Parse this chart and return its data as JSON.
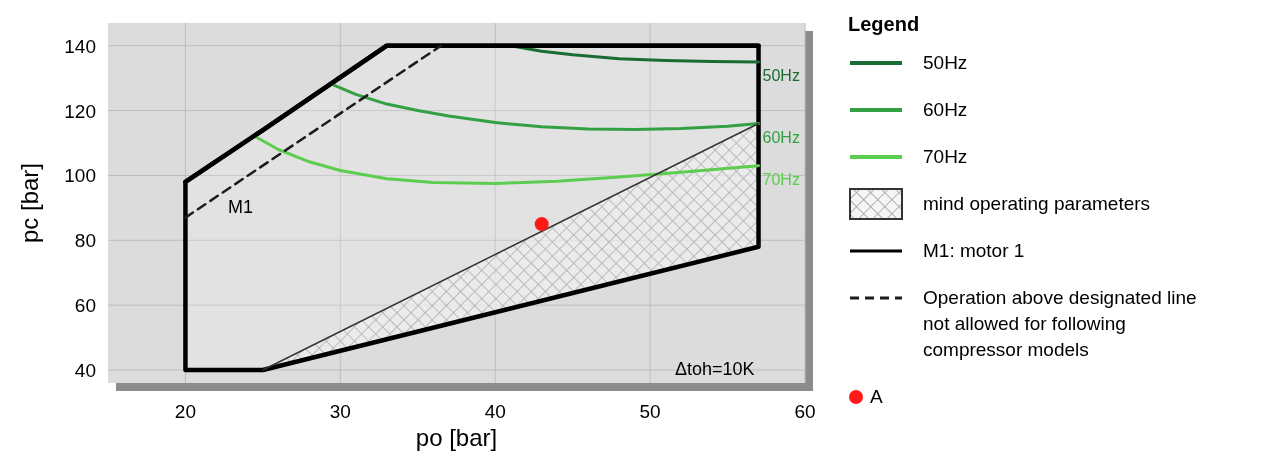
{
  "chart_data": {
    "type": "line",
    "xlabel": "po [bar]",
    "ylabel": "pc [bar]",
    "legend_title": "Legend",
    "xlim": [
      15,
      60
    ],
    "ylim": [
      36,
      147
    ],
    "xticks": [
      20,
      30,
      40,
      50,
      60
    ],
    "yticks": [
      40,
      60,
      80,
      100,
      120,
      140
    ],
    "grid": true,
    "legend": "right",
    "annotations": [
      "M1",
      "Δtoh=10K"
    ],
    "series": [
      {
        "name": "50Hz",
        "color": "#1b6b34",
        "x": [
          41,
          43,
          45,
          48,
          51,
          54,
          57
        ],
        "values": [
          140,
          138.3,
          137.2,
          136,
          135.4,
          135.1,
          135
        ]
      },
      {
        "name": "60Hz",
        "color": "#33a043",
        "x": [
          29.5,
          31,
          33,
          35,
          37,
          40,
          43,
          46,
          49,
          52,
          55,
          57
        ],
        "values": [
          128,
          125,
          122,
          120,
          118.3,
          116.3,
          115,
          114.3,
          114.2,
          114.5,
          115.2,
          116
        ]
      },
      {
        "name": "70Hz",
        "color": "#5dcd50",
        "x": [
          24.5,
          26,
          28,
          30,
          33,
          36,
          40,
          44,
          48,
          52,
          57
        ],
        "values": [
          112,
          108,
          104.2,
          101.5,
          99,
          97.8,
          97.5,
          98.2,
          99.5,
          101,
          103
        ]
      },
      {
        "name": "mind operating parameters",
        "color": "#333333",
        "x": [
          25,
          57
        ],
        "values": [
          40,
          116
        ],
        "lower": [
          40,
          78
        ],
        "upper": [
          40,
          116
        ]
      },
      {
        "name": "M1: motor 1",
        "color": "#000000",
        "x": [
          20,
          25,
          33,
          57
        ],
        "values": [
          98,
          114,
          140,
          140
        ],
        "lower": [
          40,
          40,
          49.5,
          78
        ],
        "upper": [
          98,
          114,
          140,
          140
        ]
      },
      {
        "name": "Operation above designated line not allowed for following compressor models",
        "color": "#1c1c1c",
        "line_style": "dashed",
        "x": [
          20,
          36.5
        ],
        "values": [
          87,
          140
        ]
      },
      {
        "name": "A",
        "type": "scatter",
        "marker": "circle",
        "color": "#ff1a1a",
        "x": [
          43
        ],
        "values": [
          85
        ]
      }
    ]
  }
}
